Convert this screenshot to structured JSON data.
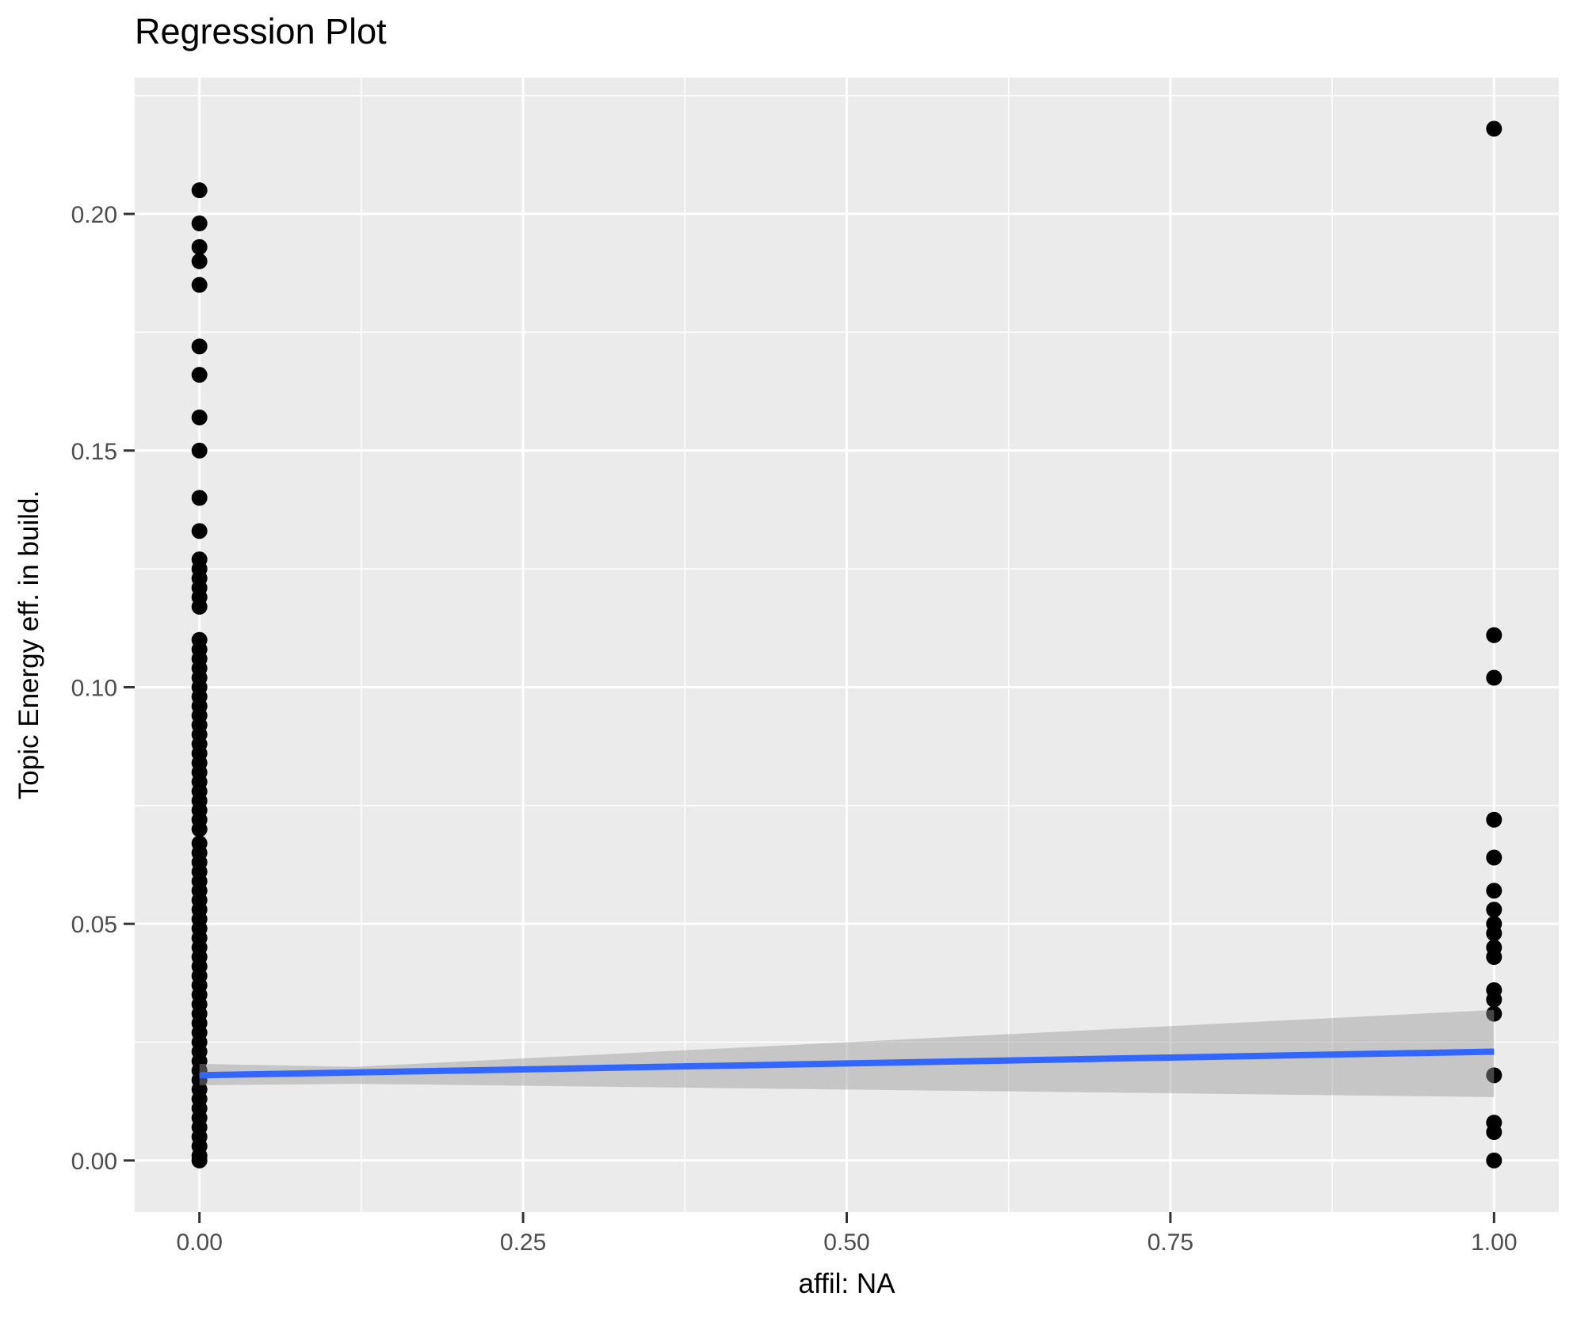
{
  "title": "Regression Plot",
  "x_axis": {
    "label": "affil: NA",
    "ticks": [
      "0.00",
      "0.25",
      "0.50",
      "0.75",
      "1.00"
    ],
    "tick_values": [
      0,
      0.25,
      0.5,
      0.75,
      1.0
    ],
    "minor_tick_values": [
      0.125,
      0.375,
      0.625,
      0.875
    ]
  },
  "y_axis": {
    "label": "Topic Energy eff. in build.",
    "ticks": [
      "0.00",
      "0.05",
      "0.10",
      "0.15",
      "0.20"
    ],
    "tick_values": [
      0,
      0.05,
      0.1,
      0.15,
      0.2
    ],
    "minor_tick_values": [
      0.025,
      0.075,
      0.125,
      0.175,
      0.225
    ]
  },
  "colors": {
    "panel_background": "#EBEBEB",
    "gridline": "#FFFFFF",
    "point": "#000000",
    "regression_line": "#3366FF",
    "confidence_band": "#999999",
    "confidence_band_alpha": 0.45,
    "axis_text": "#4D4D4D",
    "tick_mark": "#333333",
    "title_text": "#000000"
  },
  "chart_data": {
    "type": "scatter",
    "title": "Regression Plot",
    "xlabel": "affil: NA",
    "ylabel": "Topic Energy eff. in build.",
    "xlim": [
      -0.05,
      1.05
    ],
    "ylim": [
      -0.0109,
      0.2288
    ],
    "grid": "on",
    "legend": "none",
    "series": [
      {
        "name": "observations-x0",
        "kind": "points",
        "x": 0,
        "y": [
          0.205,
          0.198,
          0.193,
          0.19,
          0.185,
          0.172,
          0.166,
          0.157,
          0.15,
          0.14,
          0.133,
          0.127,
          0.125,
          0.123,
          0.121,
          0.119,
          0.117,
          0.11,
          0.108,
          0.106,
          0.104,
          0.102,
          0.1,
          0.098,
          0.096,
          0.094,
          0.092,
          0.09,
          0.088,
          0.086,
          0.084,
          0.082,
          0.08,
          0.078,
          0.076,
          0.074,
          0.072,
          0.07,
          0.067,
          0.065,
          0.063,
          0.061,
          0.059,
          0.057,
          0.055,
          0.053,
          0.051,
          0.049,
          0.047,
          0.045,
          0.043,
          0.041,
          0.039,
          0.037,
          0.035,
          0.033,
          0.031,
          0.029,
          0.027,
          0.025,
          0.023,
          0.021,
          0.019,
          0.017,
          0.015,
          0.013,
          0.011,
          0.009,
          0.007,
          0.005,
          0.003,
          0.001,
          0.0
        ]
      },
      {
        "name": "observations-x1",
        "kind": "points",
        "x": 1,
        "y": [
          0.218,
          0.111,
          0.102,
          0.072,
          0.064,
          0.057,
          0.053,
          0.05,
          0.048,
          0.045,
          0.043,
          0.036,
          0.034,
          0.031,
          0.018,
          0.008,
          0.006,
          0.0
        ]
      },
      {
        "name": "regression-line",
        "kind": "line",
        "x": [
          0,
          1
        ],
        "y": [
          0.018,
          0.023
        ]
      },
      {
        "name": "confidence-band",
        "kind": "area",
        "x": [
          0,
          0.12,
          1
        ],
        "y_upper": [
          0.0204,
          0.0198,
          0.0318
        ],
        "y_lower": [
          0.0159,
          0.0162,
          0.0134
        ]
      }
    ]
  }
}
